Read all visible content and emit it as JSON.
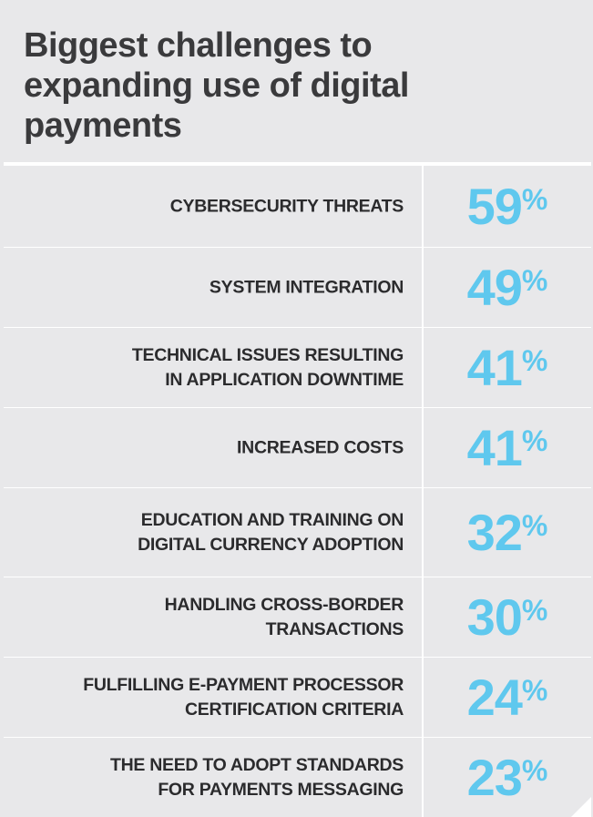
{
  "chart_data": {
    "type": "table",
    "title": "Biggest challenges to expanding use of digital payments",
    "categories": [
      "CYBERSECURITY THREATS",
      "SYSTEM INTEGRATION",
      "TECHNICAL ISSUES RESULTING\nIN APPLICATION DOWNTIME",
      "INCREASED COSTS",
      "EDUCATION AND TRAINING ON\nDIGITAL CURRENCY ADOPTION",
      "HANDLING CROSS-BORDER\nTRANSACTIONS",
      "FULFILLING E-PAYMENT PROCESSOR\nCERTIFICATION CRITERIA",
      "THE NEED TO ADOPT STANDARDS\nFOR PAYMENTS MESSAGING"
    ],
    "values": [
      59,
      49,
      41,
      41,
      32,
      30,
      24,
      23
    ],
    "unit": "%",
    "value_color": "#5fc8ee",
    "label_color": "#2b2b2d",
    "background_color": "#e8e8ea"
  }
}
